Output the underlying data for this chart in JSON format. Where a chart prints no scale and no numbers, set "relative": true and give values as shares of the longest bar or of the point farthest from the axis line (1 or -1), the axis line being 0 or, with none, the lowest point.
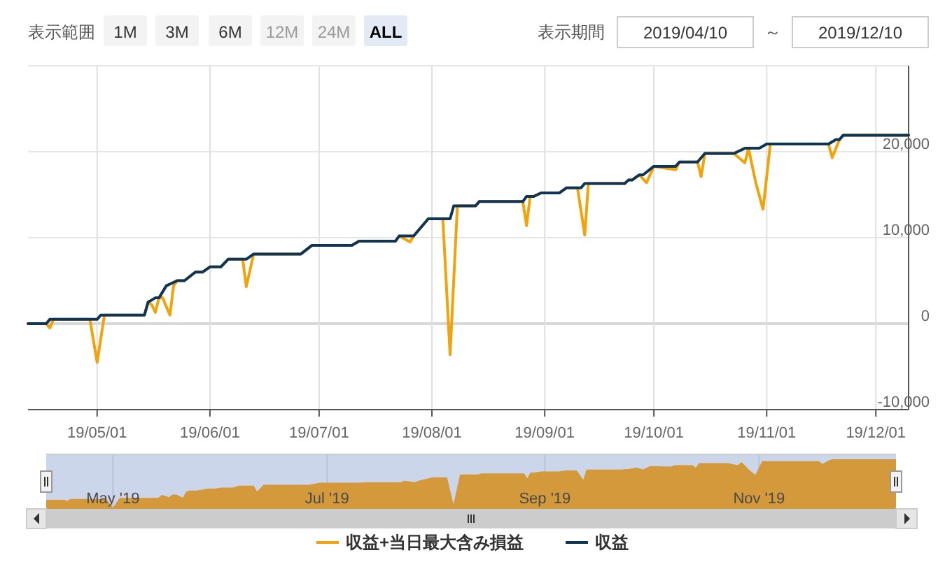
{
  "chart_data": [
    {
      "type": "line",
      "annotations": [
        "表示範囲",
        "1M",
        "3M",
        "6M",
        "12M",
        "24M",
        "ALL",
        "表示期間",
        "2019/04/10",
        "～",
        "2019/12/10"
      ],
      "xlim": [
        "2019-04-12",
        "2019-12-10"
      ],
      "xticks": [
        {
          "value": "2019-05-01",
          "label": "19/05/01"
        },
        {
          "value": "2019-06-01",
          "label": "19/06/01"
        },
        {
          "value": "2019-07-01",
          "label": "19/07/01"
        },
        {
          "value": "2019-08-01",
          "label": "19/08/01"
        },
        {
          "value": "2019-09-01",
          "label": "19/09/01"
        },
        {
          "value": "2019-10-01",
          "label": "19/10/01"
        },
        {
          "value": "2019-11-01",
          "label": "19/11/01"
        },
        {
          "value": "2019-12-01",
          "label": "19/12/01"
        }
      ],
      "ylim": [
        -10000,
        30000
      ],
      "yticks": [
        {
          "value": -10000,
          "label": "-10,000"
        },
        0,
        {
          "value": 10000,
          "label": "10,000"
        },
        {
          "value": 20000,
          "label": "20,000"
        }
      ],
      "grid": true,
      "legend": "bottom",
      "marker": "none",
      "line_style": "solid",
      "series": [
        {
          "name": "収益+当日最大含み損益",
          "color": "#f0a30a",
          "x": [
            "2019-04-12",
            "2019-04-17",
            "2019-04-18",
            "2019-04-19",
            "2019-04-29",
            "2019-05-01",
            "2019-05-03",
            "2019-05-14",
            "2019-05-15",
            "2019-05-16",
            "2019-05-17",
            "2019-05-18",
            "2019-05-19",
            "2019-05-21",
            "2019-05-22",
            "2019-05-23",
            "2019-05-25",
            "2019-05-28",
            "2019-05-30",
            "2019-06-01",
            "2019-06-04",
            "2019-06-06",
            "2019-06-10",
            "2019-06-11",
            "2019-06-13",
            "2019-06-26",
            "2019-06-29",
            "2019-07-10",
            "2019-07-12",
            "2019-07-22",
            "2019-07-23",
            "2019-07-26",
            "2019-07-27",
            "2019-07-31",
            "2019-08-04",
            "2019-08-06",
            "2019-08-08",
            "2019-08-13",
            "2019-08-14",
            "2019-08-26",
            "2019-08-27",
            "2019-08-28",
            "2019-08-29",
            "2019-08-31",
            "2019-09-05",
            "2019-09-07",
            "2019-09-10",
            "2019-09-12",
            "2019-09-13",
            "2019-09-23",
            "2019-09-24",
            "2019-09-25",
            "2019-09-27",
            "2019-09-29",
            "2019-10-01",
            "2019-10-07",
            "2019-10-08",
            "2019-10-13",
            "2019-10-14",
            "2019-10-15",
            "2019-10-23",
            "2019-10-26",
            "2019-10-27",
            "2019-10-29",
            "2019-10-31",
            "2019-11-02",
            "2019-11-18",
            "2019-11-19",
            "2019-11-21",
            "2019-11-22",
            "2019-12-10"
          ],
          "values": [
            0,
            0,
            -500,
            500,
            500,
            -4500,
            1000,
            1000,
            2500,
            2200,
            1300,
            3000,
            3000,
            1000,
            4400,
            5000,
            5000,
            6000,
            6000,
            6600,
            6600,
            7500,
            7500,
            4300,
            8100,
            8100,
            9100,
            9100,
            9600,
            9600,
            10200,
            9500,
            10200,
            12200,
            12200,
            -3600,
            13700,
            13700,
            14200,
            14200,
            11400,
            14800,
            14800,
            15200,
            15200,
            15800,
            15800,
            10300,
            16300,
            16300,
            16700,
            16700,
            17300,
            16400,
            18300,
            17900,
            18800,
            18800,
            17100,
            19800,
            19800,
            18700,
            20400,
            16400,
            13300,
            20900,
            20900,
            19300,
            21400,
            21900,
            21900
          ]
        },
        {
          "name": "収益",
          "color": "#0f3556",
          "x": [
            "2019-04-12",
            "2019-04-17",
            "2019-04-18",
            "2019-05-01",
            "2019-05-02",
            "2019-05-14",
            "2019-05-15",
            "2019-05-17",
            "2019-05-18",
            "2019-05-20",
            "2019-05-23",
            "2019-05-25",
            "2019-05-28",
            "2019-05-30",
            "2019-06-01",
            "2019-06-04",
            "2019-06-06",
            "2019-06-11",
            "2019-06-13",
            "2019-06-26",
            "2019-06-29",
            "2019-07-10",
            "2019-07-12",
            "2019-07-22",
            "2019-07-23",
            "2019-07-27",
            "2019-07-31",
            "2019-08-06",
            "2019-08-07",
            "2019-08-13",
            "2019-08-14",
            "2019-08-26",
            "2019-08-27",
            "2019-08-29",
            "2019-08-31",
            "2019-09-05",
            "2019-09-07",
            "2019-09-11",
            "2019-09-12",
            "2019-09-23",
            "2019-09-24",
            "2019-09-25",
            "2019-09-27",
            "2019-09-28",
            "2019-10-01",
            "2019-10-07",
            "2019-10-08",
            "2019-10-13",
            "2019-10-15",
            "2019-10-23",
            "2019-10-26",
            "2019-10-30",
            "2019-11-01",
            "2019-11-18",
            "2019-11-20",
            "2019-11-21",
            "2019-11-22",
            "2019-12-10"
          ],
          "values": [
            0,
            0,
            500,
            500,
            1000,
            1000,
            2500,
            3000,
            3000,
            4400,
            5000,
            5000,
            6000,
            6000,
            6600,
            6600,
            7500,
            7500,
            8100,
            8100,
            9100,
            9100,
            9600,
            9600,
            10200,
            10200,
            12200,
            12200,
            13700,
            13700,
            14200,
            14200,
            14800,
            14800,
            15200,
            15200,
            15800,
            15800,
            16300,
            16300,
            16700,
            16700,
            17300,
            17300,
            18300,
            18300,
            18800,
            18800,
            19800,
            19800,
            20400,
            20400,
            20900,
            20900,
            21400,
            21400,
            21900,
            21900
          ]
        }
      ]
    },
    {
      "type": "area",
      "relative": true,
      "grid": "x",
      "bands": [
        {
          "axis": "x",
          "from": "2019-04-12",
          "to": "2019-12-10",
          "color": "#ccd6eb"
        }
      ],
      "xlim": [
        "2019-04-12",
        "2019-12-10"
      ],
      "xticks": [
        {
          "value": "2019-05-01",
          "label": "May '19"
        },
        {
          "value": "2019-07-01",
          "label": "Jul '19"
        },
        {
          "value": "2019-09-01",
          "label": "Sep '19"
        },
        {
          "value": "2019-11-01",
          "label": "Nov '19"
        }
      ],
      "series": [
        {
          "color": "#d4993a",
          "x": [
            "2019-04-12",
            "2019-04-17",
            "2019-04-18",
            "2019-04-19",
            "2019-04-29",
            "2019-05-01",
            "2019-05-03",
            "2019-05-14",
            "2019-05-15",
            "2019-05-16",
            "2019-05-17",
            "2019-05-18",
            "2019-05-19",
            "2019-05-21",
            "2019-05-22",
            "2019-05-23",
            "2019-05-25",
            "2019-05-28",
            "2019-05-30",
            "2019-06-01",
            "2019-06-04",
            "2019-06-06",
            "2019-06-10",
            "2019-06-11",
            "2019-06-13",
            "2019-06-26",
            "2019-06-29",
            "2019-07-10",
            "2019-07-12",
            "2019-07-22",
            "2019-07-23",
            "2019-07-26",
            "2019-07-27",
            "2019-07-31",
            "2019-08-04",
            "2019-08-06",
            "2019-08-08",
            "2019-08-13",
            "2019-08-14",
            "2019-08-26",
            "2019-08-27",
            "2019-08-28",
            "2019-08-29",
            "2019-08-31",
            "2019-09-05",
            "2019-09-07",
            "2019-09-10",
            "2019-09-12",
            "2019-09-13",
            "2019-09-23",
            "2019-09-24",
            "2019-09-25",
            "2019-09-27",
            "2019-09-29",
            "2019-10-01",
            "2019-10-07",
            "2019-10-08",
            "2019-10-13",
            "2019-10-14",
            "2019-10-15",
            "2019-10-23",
            "2019-10-26",
            "2019-10-27",
            "2019-10-29",
            "2019-10-31",
            "2019-11-02",
            "2019-11-18",
            "2019-11-19",
            "2019-11-21",
            "2019-11-22",
            "2019-12-10"
          ],
          "values": [
            0.17,
            0.17,
            0.15,
            0.19,
            0.19,
            0,
            0.21,
            0.21,
            0.27,
            0.25,
            0.22,
            0.28,
            0.28,
            0.21,
            0.34,
            0.36,
            0.36,
            0.4,
            0.4,
            0.42,
            0.42,
            0.46,
            0.46,
            0.33,
            0.48,
            0.48,
            0.52,
            0.52,
            0.53,
            0.53,
            0.56,
            0.53,
            0.56,
            0.63,
            0.63,
            0.03,
            0.69,
            0.69,
            0.71,
            0.71,
            0.6,
            0.73,
            0.73,
            0.75,
            0.75,
            0.77,
            0.77,
            0.56,
            0.79,
            0.79,
            0.8,
            0.8,
            0.83,
            0.79,
            0.86,
            0.85,
            0.88,
            0.88,
            0.82,
            0.92,
            0.92,
            0.88,
            0.94,
            0.79,
            0.67,
            0.96,
            0.96,
            0.9,
            0.98,
            1,
            1
          ]
        }
      ]
    }
  ]
}
